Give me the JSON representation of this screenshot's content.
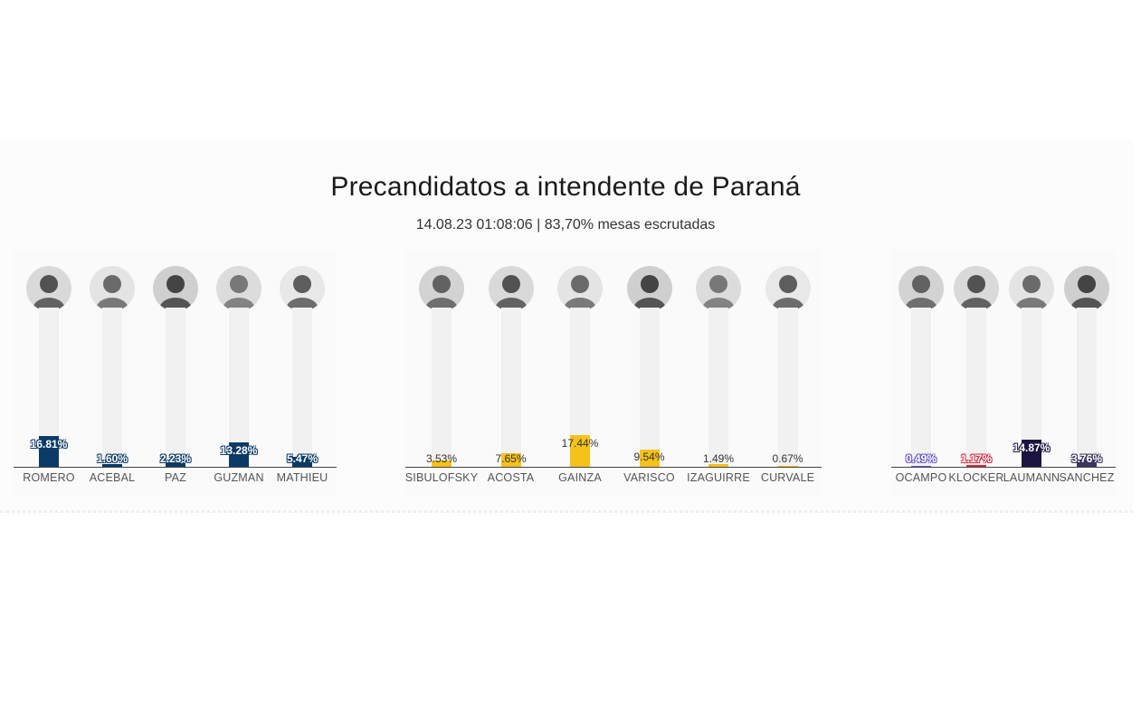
{
  "header": {
    "title": "Precandidatos a intendente de Paraná",
    "subtitle": "14.08.23 01:08:06 | 83,70% mesas escrutadas"
  },
  "chart_data": [
    {
      "type": "bar",
      "color": "#0b3a66",
      "label_style": "outline",
      "categories": [
        "ROMERO",
        "ACEBAL",
        "PAZ",
        "GUZMAN",
        "MATHIEU"
      ],
      "values": [
        16.81,
        1.6,
        2.23,
        13.28,
        5.47
      ],
      "labels": [
        "16.81%",
        "1.60%",
        "2.23%",
        "13.28%",
        "5.47%"
      ]
    },
    {
      "type": "bar",
      "color": "#f4c21a",
      "label_style": "plain",
      "categories": [
        "SIBULOFSKY",
        "ACOSTA",
        "GAINZA",
        "VARISCO",
        "IZAGUIRRE",
        "CURVALE"
      ],
      "values": [
        3.53,
        7.65,
        17.44,
        9.54,
        1.49,
        0.67
      ],
      "labels": [
        "3.53%",
        "7.65%",
        "17.44%",
        "9.54%",
        "1.49%",
        "0.67%"
      ]
    },
    {
      "type": "bar",
      "label_style": "outline",
      "categories": [
        "OCAMPO",
        "KLOCKER",
        "LAUMANN",
        "SANCHEZ"
      ],
      "values": [
        0.49,
        1.17,
        14.87,
        3.76
      ],
      "labels": [
        "0.49%",
        "1.17%",
        "14.87%",
        "3.76%"
      ],
      "colors": [
        "#6a5acd",
        "#d6283c",
        "#1c1440",
        "#3b3560"
      ]
    }
  ]
}
